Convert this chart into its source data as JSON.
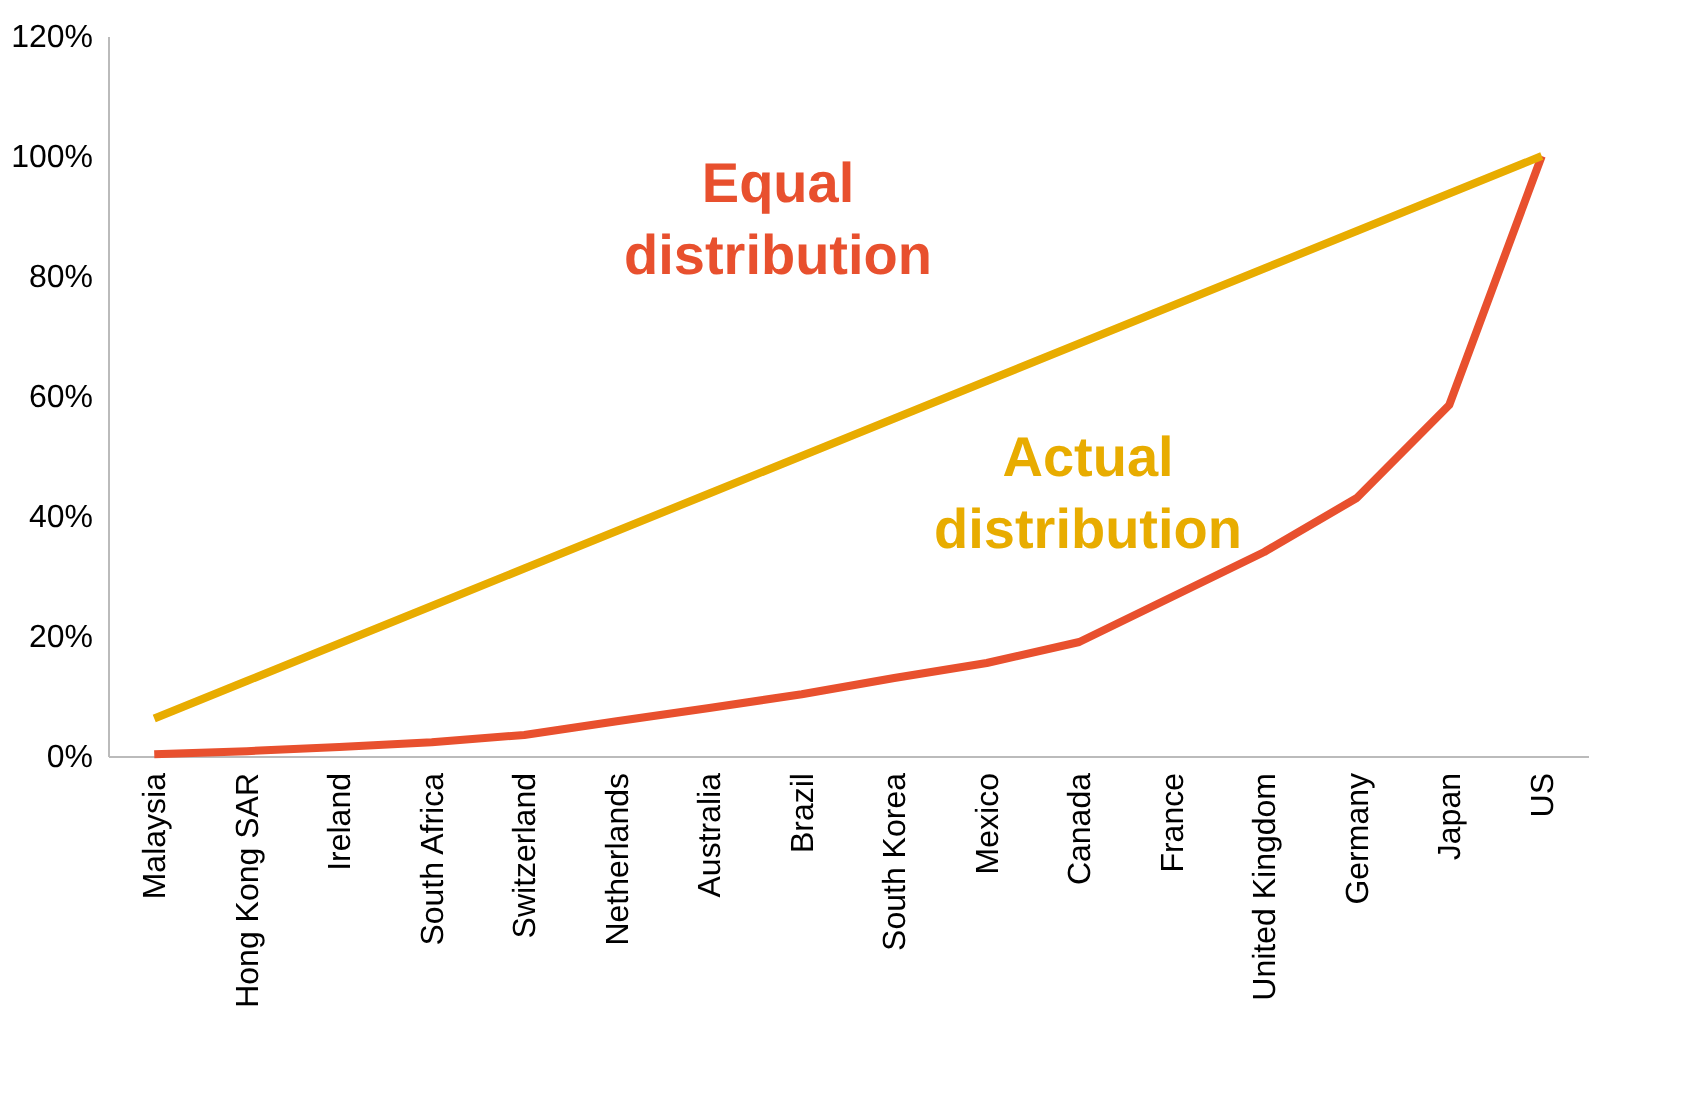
{
  "chart_data": {
    "type": "line",
    "categories": [
      "Malaysia",
      "Hong Kong SAR",
      "Ireland",
      "South Africa",
      "Switzerland",
      "Netherlands",
      "Australia",
      "Brazil",
      "South Korea",
      "Mexico",
      "Canada",
      "France",
      "United Kingdom",
      "Germany",
      "Japan",
      "US"
    ],
    "series": [
      {
        "name": "Equal distribution",
        "color": "#e8502e",
        "values": [
          0.3,
          0.8,
          1.5,
          2.3,
          3.5,
          5.8,
          8,
          10.3,
          13,
          15.5,
          19,
          26.5,
          34,
          43,
          58.5,
          100
        ]
      },
      {
        "name": "Actual distribution",
        "color": "#e8ac00",
        "values": [
          6.25,
          12.5,
          18.75,
          25,
          31.25,
          37.5,
          43.75,
          50,
          56.25,
          62.5,
          68.75,
          75,
          81.25,
          87.5,
          93.75,
          100
        ]
      }
    ],
    "ylim": [
      0,
      120
    ],
    "yticks": [
      {
        "value": 0,
        "label": "0%"
      },
      {
        "value": 20,
        "label": "20%"
      },
      {
        "value": 40,
        "label": "40%"
      },
      {
        "value": 60,
        "label": "60%"
      },
      {
        "value": 80,
        "label": "80%"
      },
      {
        "value": 100,
        "label": "100%"
      },
      {
        "value": 120,
        "label": "120%"
      }
    ],
    "grid": false,
    "legend": false,
    "marker": "none",
    "line_style": "solid"
  }
}
